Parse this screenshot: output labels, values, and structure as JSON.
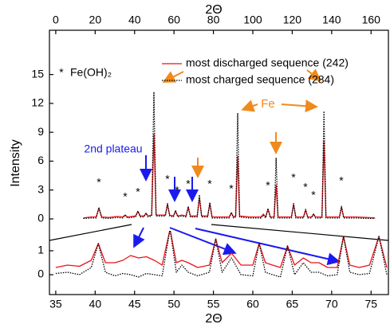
{
  "chart_data": [
    {
      "type": "line",
      "x_label": "2Θ",
      "y_label": "Intensity",
      "xlim": [
        -3.2,
        168.8
      ],
      "xticks": [
        0,
        20,
        40,
        60,
        80,
        100,
        120,
        140,
        160
      ],
      "ylim": [
        -0.83,
        19.6
      ],
      "yticks": [
        0,
        3,
        6,
        9,
        12,
        15
      ],
      "x": [
        14,
        18,
        20.5,
        21.9,
        23.3,
        27,
        31,
        34,
        35.2,
        36.4,
        40.5,
        41.7,
        42.9,
        44.8,
        45.8,
        46.8,
        48.7,
        49.8,
        50.9,
        53,
        55.6,
        56.7,
        57.8,
        59.7,
        60.8,
        61.9,
        64,
        66.1,
        67.2,
        68.3,
        71.8,
        72.9,
        74,
        77.1,
        78.2,
        79.3,
        84,
        88,
        89.1,
        90.2,
        91.3,
        92.3,
        93.3,
        98,
        104.2,
        105.3,
        106.5,
        107.7,
        108.9,
        110.8,
        111.8,
        112.8,
        116,
        119.6,
        120.7,
        121.8,
        125.7,
        126.8,
        127.9,
        129.8,
        130.8,
        131.8,
        135.1,
        136.1,
        137.1,
        140,
        143.9,
        145,
        146.1,
        152,
        158,
        162
      ],
      "series": [
        {
          "name": "most discharged sequence (242)",
          "color": "#e8141b",
          "line_style": "solid",
          "values": [
            0.1,
            0.2,
            0.2,
            1.1,
            0.2,
            0.15,
            0.25,
            0.2,
            0.4,
            0.2,
            0.3,
            0.8,
            0.3,
            0.3,
            0.6,
            0.3,
            0.4,
            8.8,
            0.4,
            0.4,
            0.4,
            1.5,
            0.4,
            0.3,
            0.8,
            0.3,
            0.4,
            0.3,
            1.2,
            0.3,
            0.3,
            2.2,
            0.3,
            0.3,
            1.6,
            0.2,
            0.2,
            0.2,
            0.6,
            0.2,
            0.3,
            6.5,
            0.3,
            0.2,
            0.2,
            0.5,
            0.2,
            1.0,
            0.2,
            0.2,
            3.5,
            0.2,
            0.2,
            0.2,
            1.5,
            0.2,
            0.2,
            0.9,
            0.2,
            0.2,
            0.5,
            0.2,
            0.2,
            8.0,
            0.2,
            0.2,
            0.2,
            1.2,
            0.2,
            0.2,
            0.15,
            0.1
          ]
        },
        {
          "name": "most charged sequence (284)",
          "color": "#000000",
          "line_style": "dotted",
          "values": [
            0.05,
            0.1,
            0.1,
            1.2,
            0.1,
            0.05,
            0.15,
            0.1,
            0.4,
            0.1,
            0.2,
            0.8,
            0.2,
            0.2,
            0.6,
            0.2,
            0.3,
            13.2,
            0.3,
            0.3,
            0.3,
            1.6,
            0.3,
            0.2,
            0.9,
            0.2,
            0.3,
            0.2,
            1.3,
            0.2,
            0.2,
            2.5,
            0.2,
            0.2,
            1.7,
            0.1,
            0.1,
            0.1,
            0.7,
            0.1,
            0.2,
            11,
            0.2,
            0.1,
            0.1,
            0.4,
            0.1,
            1.1,
            0.1,
            0.1,
            6.3,
            0.1,
            0.1,
            0.1,
            1.6,
            0.1,
            0.1,
            1.0,
            0.1,
            0.1,
            0.5,
            0.1,
            0.1,
            11.2,
            0.1,
            0.1,
            0.1,
            1.3,
            0.1,
            0.1,
            0.05,
            0.05
          ]
        }
      ],
      "legend_symbol": "*",
      "legend_symbol_label": "Fe(OH)₂",
      "peak_markers": [
        "*",
        "*",
        "*",
        "*",
        "*",
        "*",
        "*",
        "*",
        "*",
        "*",
        "*",
        "*",
        "*"
      ],
      "annotations": [
        "Fe",
        "2nd plateau"
      ]
    },
    {
      "type": "line",
      "x_label": "2Θ",
      "xlim": [
        34.2,
        77.2
      ],
      "xticks": [
        35,
        40,
        45,
        50,
        55,
        60,
        65,
        70,
        75
      ],
      "ylim": [
        -0.83,
        1.83
      ],
      "yticks": [
        0,
        1
      ],
      "x": [
        35,
        36.5,
        38,
        39.5,
        40.4,
        41.3,
        42.5,
        43.5,
        44.5,
        45.5,
        46.5,
        47.5,
        48.5,
        49.5,
        50.3,
        51,
        51.8,
        53,
        54.5,
        55.3,
        56.1,
        57.3,
        58.5,
        60,
        60.8,
        61.6,
        62.5,
        63.5,
        64.4,
        65.3,
        66.4,
        67.4,
        68.4,
        69.5,
        70.7,
        71.5,
        72.3,
        73.5,
        74.8,
        76,
        77
      ],
      "series": [
        {
          "color": "#e8141b",
          "line_style": "solid",
          "values": [
            0.3,
            0.4,
            0.35,
            0.6,
            1.3,
            0.5,
            0.5,
            0.6,
            0.8,
            0.7,
            0.75,
            0.6,
            0.4,
            1.9,
            0.5,
            0.6,
            0.5,
            0.3,
            0.4,
            1.5,
            0.5,
            0.9,
            0.4,
            0.4,
            1.3,
            0.5,
            0.4,
            0.3,
            1.2,
            0.4,
            0.7,
            0.5,
            0.5,
            0.3,
            0.3,
            1.6,
            0.4,
            0.3,
            0.4,
            1.6,
            0.3
          ]
        },
        {
          "color": "#000000",
          "line_style": "dotted",
          "values": [
            0.05,
            0.1,
            0,
            0.3,
            1.3,
            0.1,
            -0.05,
            0.05,
            0,
            -0.1,
            0.05,
            0,
            -0.05,
            1.9,
            0.1,
            0.4,
            0.1,
            -0.05,
            0.1,
            1.5,
            0.1,
            0.7,
            0,
            -0.05,
            1.3,
            0.1,
            0,
            -0.1,
            1.2,
            0,
            0.5,
            0.1,
            0.1,
            -0.05,
            0,
            1.6,
            0.1,
            0,
            0.05,
            1.6,
            0
          ]
        }
      ]
    }
  ]
}
